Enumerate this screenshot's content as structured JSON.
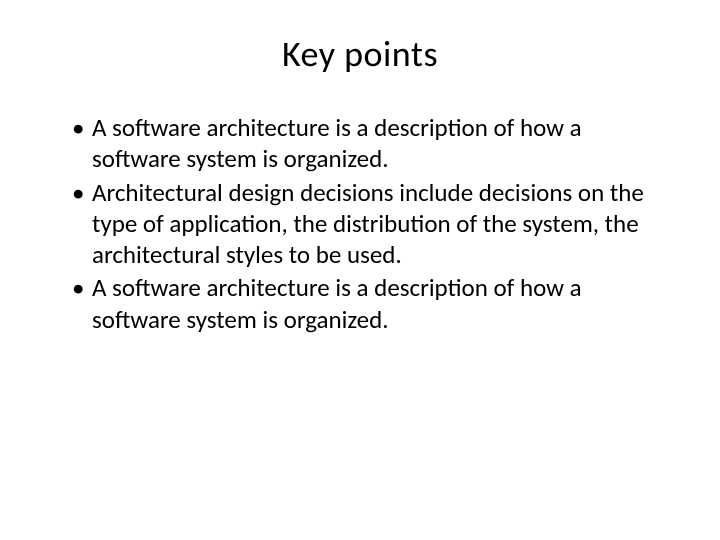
{
  "slide": {
    "title": "Key points",
    "bullets": [
      "A software architecture is a description of how a software system is organized.",
      "Architectural design decisions include decisions on the type of application, the distribution of the system, the architectural styles to be used.",
      "A software architecture is a description of how a software system is organized."
    ],
    "background_color": "#ffffff",
    "text_color": "#000000",
    "title_fontsize": 36,
    "body_fontsize": 25,
    "font_family": "Calibri"
  }
}
